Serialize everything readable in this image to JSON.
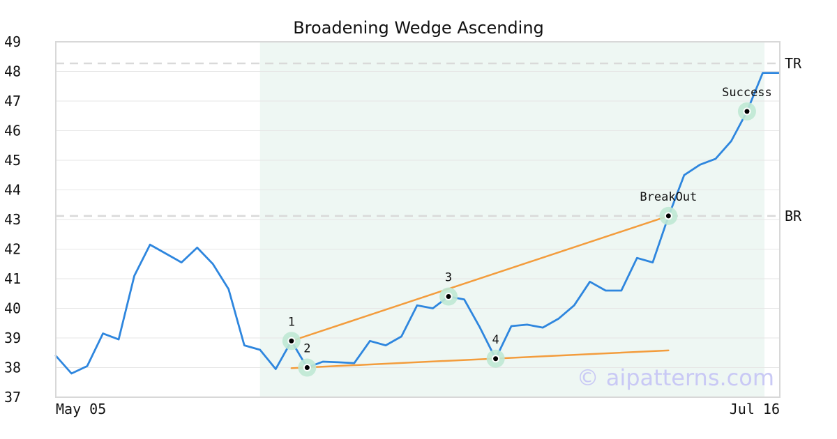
{
  "chart_data": {
    "type": "line",
    "title": "Broadening Wedge Ascending",
    "ylim": [
      37,
      49
    ],
    "yticks": [
      37,
      38,
      39,
      40,
      41,
      42,
      43,
      44,
      45,
      46,
      47,
      48,
      49
    ],
    "x_labels": [
      "May 05",
      "Jul 16"
    ],
    "grid": true,
    "series": [
      {
        "color": "#2e86de",
        "values": [
          38.4,
          37.8,
          38.05,
          39.15,
          38.95,
          41.1,
          42.15,
          41.85,
          41.55,
          42.05,
          41.5,
          40.65,
          38.75,
          38.6,
          37.95,
          38.9,
          38.0,
          38.2,
          38.18,
          38.15,
          38.9,
          38.75,
          39.05,
          40.1,
          40.0,
          40.4,
          40.3,
          39.35,
          38.3,
          39.4,
          39.45,
          39.35,
          39.65,
          40.1,
          40.9,
          40.6,
          40.6,
          41.7,
          41.55,
          43.1,
          44.5,
          44.85,
          45.05,
          45.65,
          46.65,
          47.95,
          47.95
        ]
      }
    ],
    "pattern_window": {
      "start_index": 13,
      "end_index": 46
    },
    "reference_lines": [
      {
        "label": "TR",
        "value": 48.27
      },
      {
        "label": "BR",
        "value": 43.12
      }
    ],
    "trend_lines": [
      {
        "from": [
          15,
          38.9
        ],
        "to": [
          39,
          43.12
        ],
        "color": "#f39c3c"
      },
      {
        "from": [
          15,
          37.98
        ],
        "to": [
          39,
          38.58
        ],
        "color": "#f39c3c"
      }
    ],
    "points": [
      {
        "label": "1",
        "index": 15,
        "value": 38.9,
        "label_pos": "above"
      },
      {
        "label": "2",
        "index": 16,
        "value": 38.0,
        "label_pos": "above"
      },
      {
        "label": "3",
        "index": 25,
        "value": 40.4,
        "label_pos": "above"
      },
      {
        "label": "4",
        "index": 28,
        "value": 38.3,
        "label_pos": "above"
      },
      {
        "label": "BreakOut",
        "index": 39,
        "value": 43.12,
        "label_pos": "above"
      },
      {
        "label": "Success",
        "index": 44,
        "value": 46.65,
        "label_pos": "above"
      }
    ],
    "colors": {
      "line": "#2e86de",
      "trend": "#f39c3c",
      "highlight": "#eef7f3",
      "marker_halo": "#bfe8d4",
      "grid": "#e6e6e6",
      "reference": "#d9d9d9"
    }
  },
  "watermark": "© aipatterns.com"
}
